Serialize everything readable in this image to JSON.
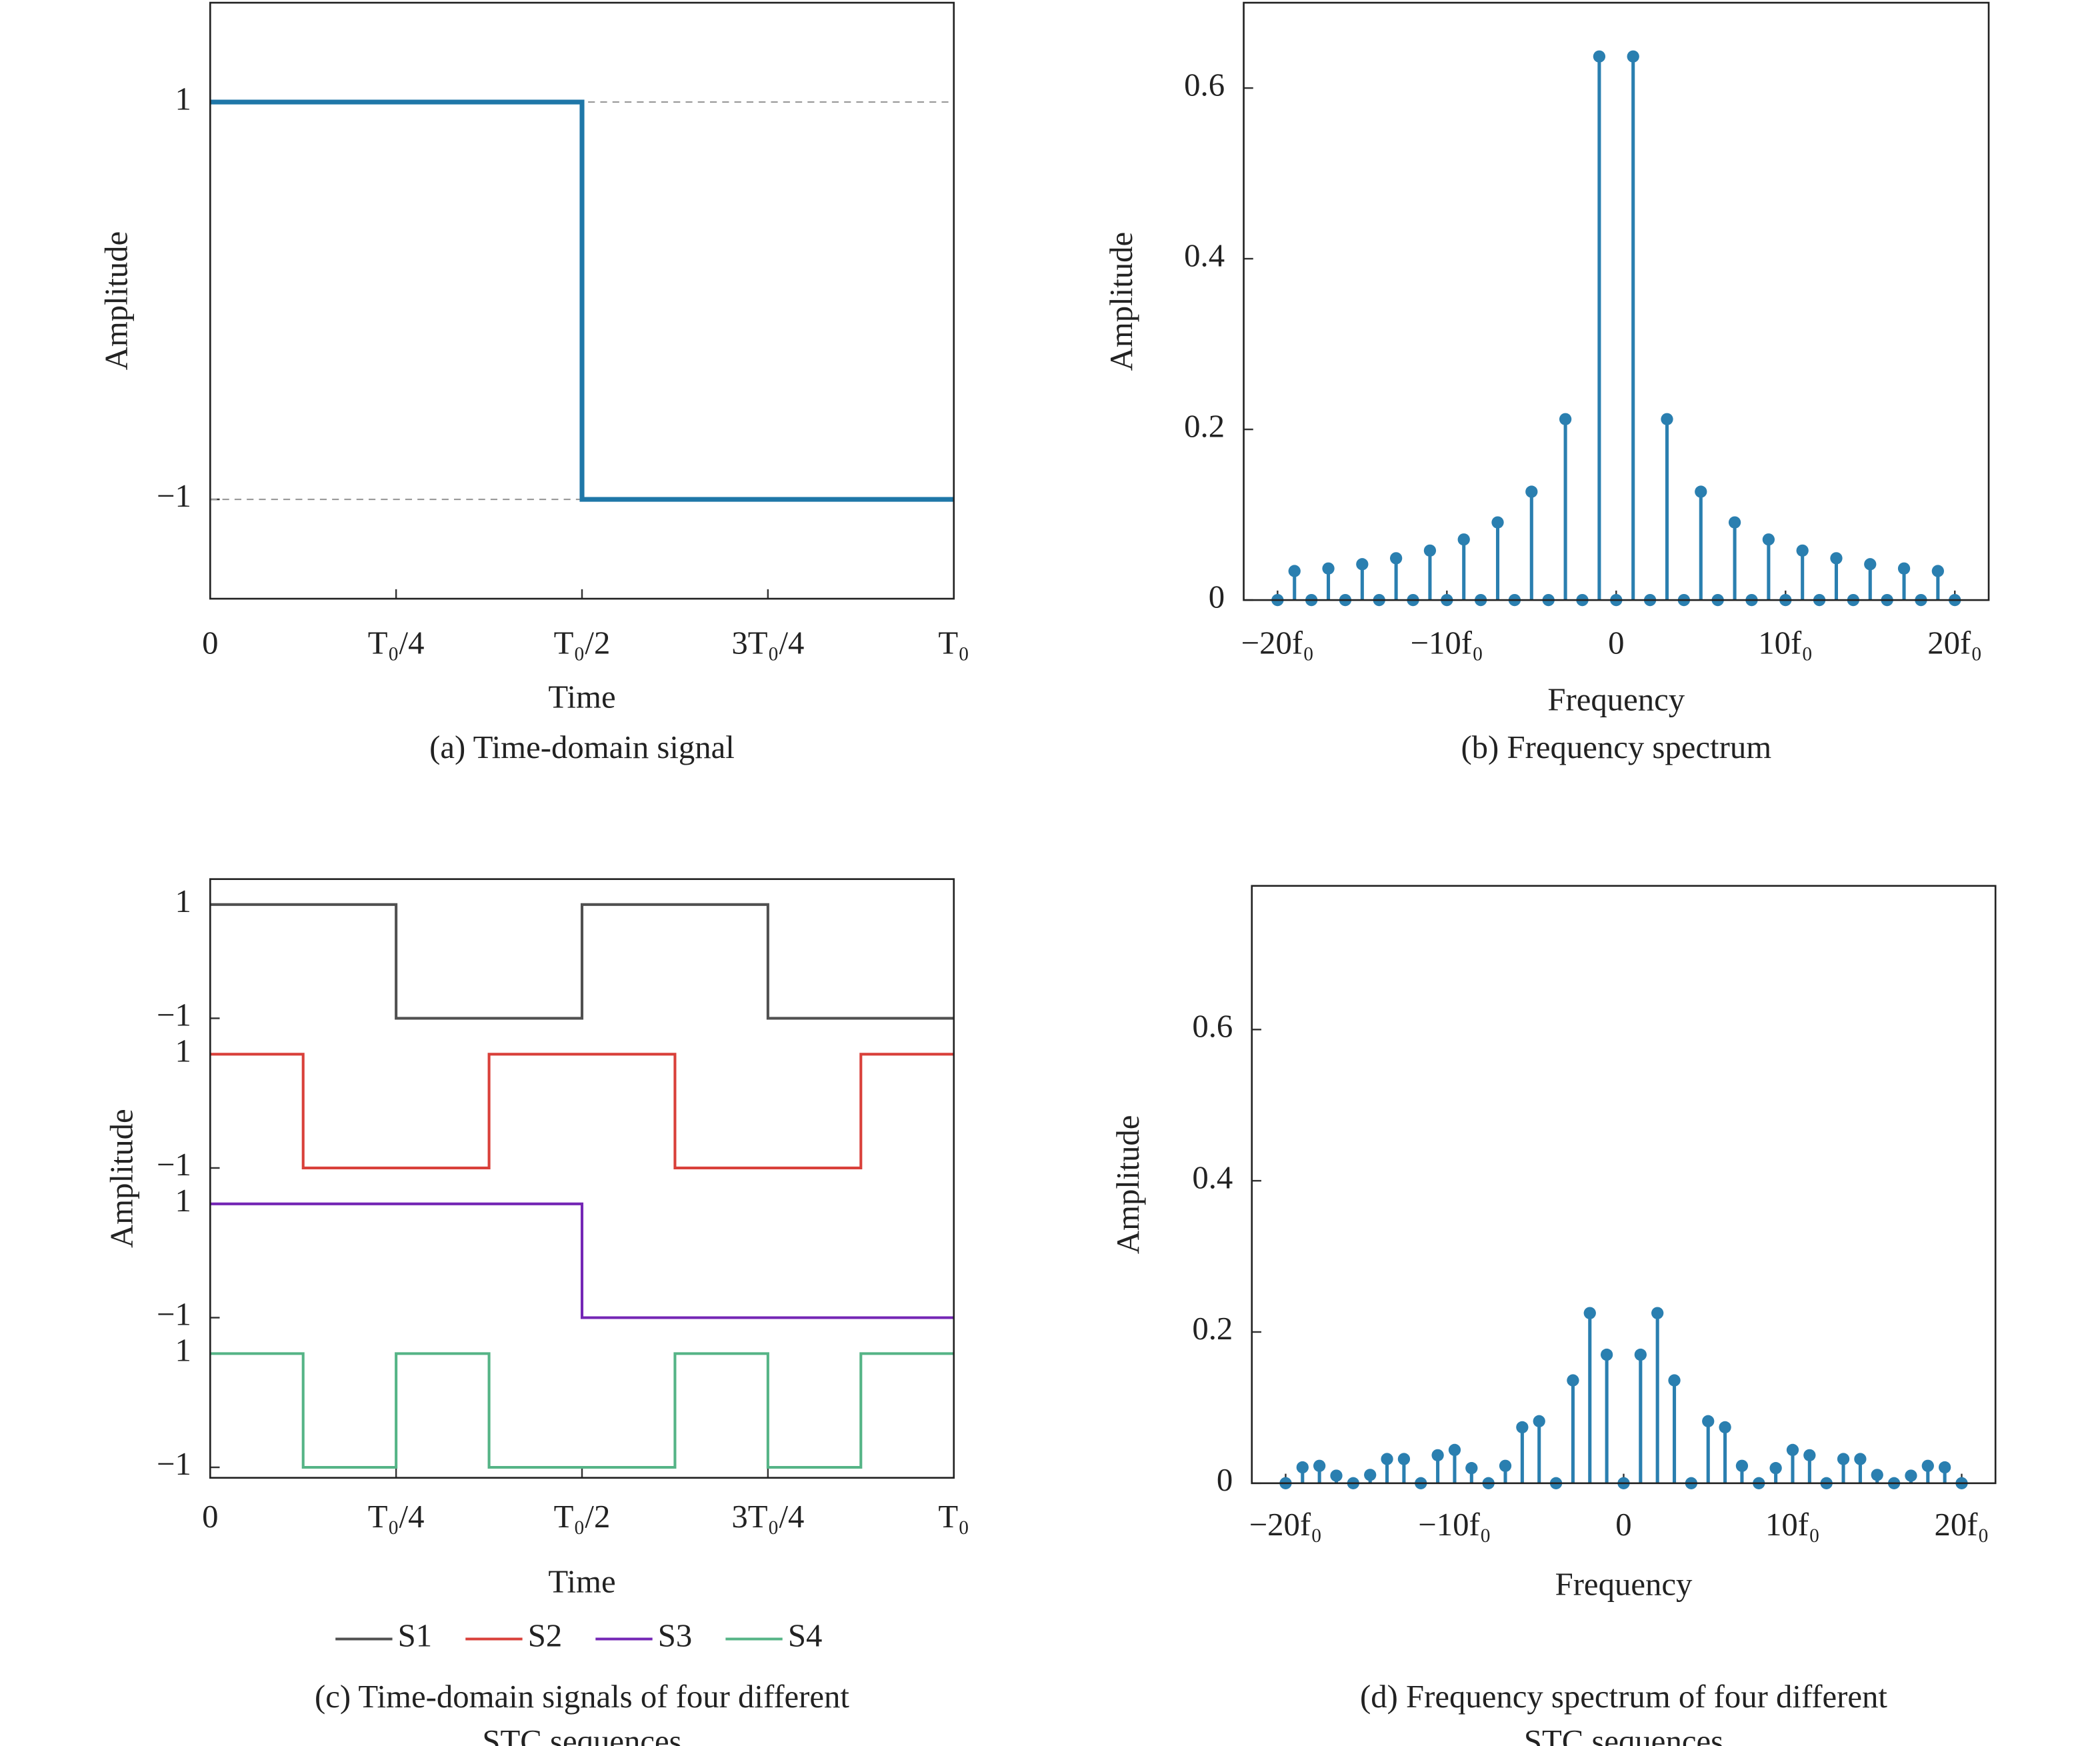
{
  "chart_data": [
    {
      "type": "line",
      "caption": [
        "(a) Time-domain signal"
      ],
      "x_label": "Time",
      "y_label": "Amplitude",
      "xlim": [
        0,
        1
      ],
      "ylim": [
        -1.5,
        1.5
      ],
      "xticks": [
        0,
        {
          "value": 0.25,
          "label": "T₀/4"
        },
        {
          "value": 0.5,
          "label": "T₀/2"
        },
        {
          "value": 0.75,
          "label": "3T₀/4"
        },
        {
          "value": 1,
          "label": "T₀"
        }
      ],
      "yticks": [
        {
          "value": -1,
          "label": "−1"
        },
        1
      ],
      "grid": true,
      "series": [
        {
          "color": "#1f77a8",
          "x": [
            0,
            0.5,
            0.5,
            1
          ],
          "values": [
            1,
            1,
            -1,
            -1
          ]
        }
      ]
    },
    {
      "type": "stem",
      "caption": [
        "(b) Frequency spectrum"
      ],
      "x_label": "Frequency",
      "y_label": "Amplitude",
      "xlim": [
        -22,
        22
      ],
      "ylim": [
        0,
        0.7
      ],
      "xticks": [
        {
          "value": -20,
          "label": "−20f₀"
        },
        {
          "value": -10,
          "label": "−10f₀"
        },
        0,
        {
          "value": 10,
          "label": "10f₀"
        },
        {
          "value": 20,
          "label": "20f₀"
        }
      ],
      "yticks": [
        0,
        0.2,
        0.4,
        0.6
      ],
      "color": "#2a7fb0",
      "x": [
        -20,
        -19,
        -18,
        -17,
        -16,
        -15,
        -14,
        -13,
        -12,
        -11,
        -10,
        -9,
        -8,
        -7,
        -6,
        -5,
        -4,
        -3,
        -2,
        -1,
        0,
        1,
        2,
        3,
        4,
        5,
        6,
        7,
        8,
        9,
        10,
        11,
        12,
        13,
        14,
        15,
        16,
        17,
        18,
        19,
        20
      ],
      "values": [
        0,
        0.034,
        0,
        0.037,
        0,
        0.042,
        0,
        0.049,
        0,
        0.058,
        0,
        0.071,
        0,
        0.091,
        0,
        0.127,
        0,
        0.212,
        0,
        0.637,
        0,
        0.637,
        0,
        0.212,
        0,
        0.127,
        0,
        0.091,
        0,
        0.071,
        0,
        0.058,
        0,
        0.049,
        0,
        0.042,
        0,
        0.037,
        0,
        0.034,
        0
      ]
    },
    {
      "type": "line",
      "offset_series": true,
      "legend": "bottom",
      "caption": [
        "(c) Time-domain signals of four different",
        "STC sequences"
      ],
      "x_label": "Time",
      "y_label": "Amplitude",
      "xlim": [
        0,
        1
      ],
      "ylim": [
        -1,
        1
      ],
      "xticks": [
        0,
        {
          "value": 0.25,
          "label": "T₀/4"
        },
        {
          "value": 0.5,
          "label": "T₀/2"
        },
        {
          "value": 0.75,
          "label": "3T₀/4"
        },
        {
          "value": 1,
          "label": "T₀"
        }
      ],
      "yticks": [
        {
          "value": -1,
          "label": "−1"
        },
        1
      ],
      "series": [
        {
          "name": "S1",
          "color": "#505050",
          "x": [
            0,
            0.25,
            0.25,
            0.5,
            0.5,
            0.75,
            0.75,
            1
          ],
          "values": [
            1,
            1,
            -1,
            -1,
            1,
            1,
            -1,
            -1
          ]
        },
        {
          "name": "S2",
          "color": "#d9403a",
          "x": [
            0,
            0.125,
            0.125,
            0.375,
            0.375,
            0.625,
            0.625,
            0.875,
            0.875,
            1
          ],
          "values": [
            1,
            1,
            -1,
            -1,
            1,
            1,
            -1,
            -1,
            1,
            1
          ]
        },
        {
          "name": "S3",
          "color": "#7426b5",
          "x": [
            0,
            0.5,
            0.5,
            1
          ],
          "values": [
            1,
            1,
            -1,
            -1
          ]
        },
        {
          "name": "S4",
          "color": "#55b486",
          "x": [
            0,
            0.125,
            0.125,
            0.25,
            0.25,
            0.375,
            0.375,
            0.625,
            0.625,
            0.75,
            0.75,
            0.875,
            0.875,
            1
          ],
          "values": [
            1,
            1,
            -1,
            -1,
            1,
            1,
            -1,
            -1,
            1,
            1,
            -1,
            -1,
            1,
            1
          ]
        }
      ]
    },
    {
      "type": "stem",
      "caption": [
        "(d) Frequency spectrum of four different",
        "STC sequences"
      ],
      "x_label": "Frequency",
      "y_label": "Amplitude",
      "xlim": [
        -22,
        22
      ],
      "ylim": [
        0,
        0.79
      ],
      "xticks": [
        {
          "value": -20,
          "label": "−20f₀"
        },
        {
          "value": -10,
          "label": "−10f₀"
        },
        0,
        {
          "value": 10,
          "label": "10f₀"
        },
        {
          "value": 20,
          "label": "20f₀"
        }
      ],
      "yticks": [
        0,
        0.2,
        0.4,
        0.6
      ],
      "color": "#2a7fb0",
      "x": [
        -20,
        -19,
        -18,
        -17,
        -16,
        -15,
        -14,
        -13,
        -12,
        -11,
        -10,
        -9,
        -8,
        -7,
        -6,
        -5,
        -4,
        -3,
        -2,
        -1,
        0,
        1,
        2,
        3,
        4,
        5,
        6,
        7,
        8,
        9,
        10,
        11,
        12,
        13,
        14,
        15,
        16,
        17,
        18,
        19,
        20
      ],
      "values": [
        0,
        0.021,
        0.023,
        0.01,
        0,
        0.011,
        0.032,
        0.032,
        0,
        0.037,
        0.044,
        0.02,
        0,
        0.023,
        0.074,
        0.082,
        0,
        0.136,
        0.225,
        0.17,
        0,
        0.17,
        0.225,
        0.136,
        0,
        0.082,
        0.074,
        0.023,
        0,
        0.02,
        0.044,
        0.037,
        0,
        0.032,
        0.032,
        0.011,
        0,
        0.01,
        0.023,
        0.021,
        0
      ]
    }
  ]
}
